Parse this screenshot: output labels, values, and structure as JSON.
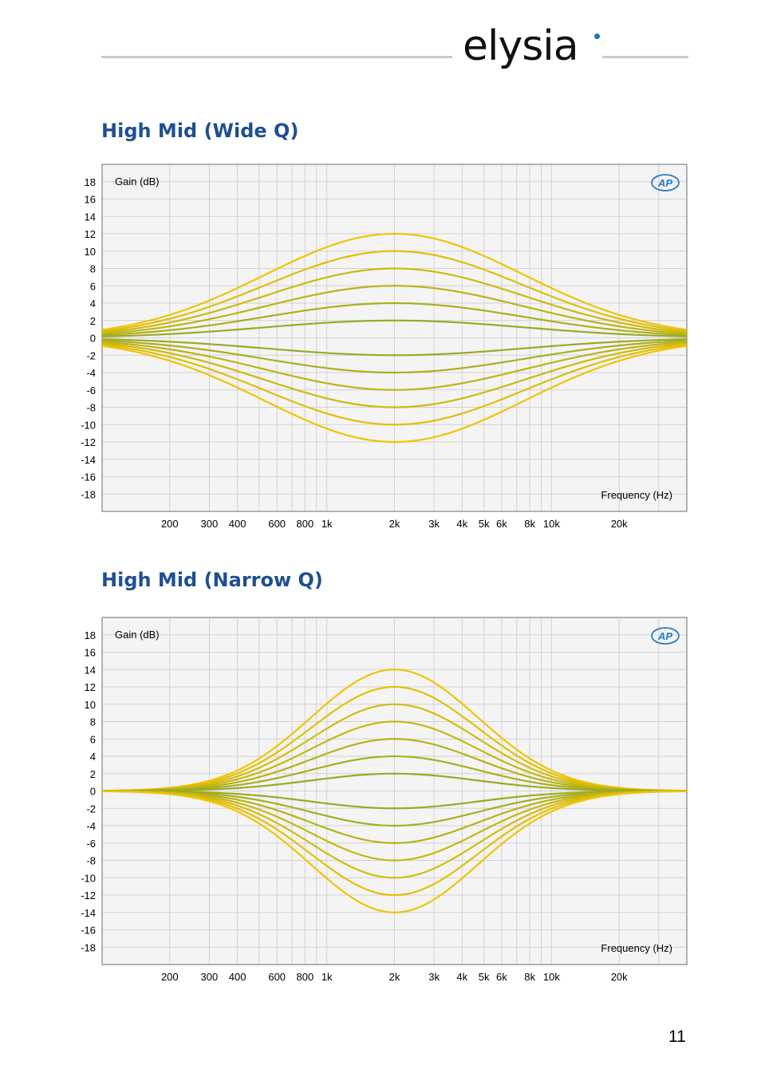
{
  "header": {
    "brand": "elysia"
  },
  "sections": [
    {
      "title": "High Mid (Wide Q)"
    },
    {
      "title": "High Mid (Narrow Q)"
    }
  ],
  "page_number": "11",
  "colors": {
    "title": "#1f4f93",
    "plot_bg": "#f4f4f4",
    "plot_border": "#9a9a9a",
    "grid": "#d2d2d2",
    "curve_outer": "#f2c300",
    "curve_inner": "#9aaa24",
    "ap_logo": "#2a7ac4"
  },
  "chart_data": [
    {
      "type": "line",
      "title": "",
      "ylabel": "Gain (dB)",
      "xlabel": "Frequency (Hz)",
      "x_scale": "log",
      "xlim": [
        100,
        40000
      ],
      "ylim": [
        -20,
        20
      ],
      "yticks": [
        18,
        16,
        14,
        12,
        10,
        8,
        6,
        4,
        2,
        0,
        -2,
        -4,
        -6,
        -8,
        -10,
        -12,
        -14,
        -16,
        -18
      ],
      "ytick_labels": [
        "18",
        "16",
        "14",
        "12",
        "10",
        "8",
        "6",
        "4",
        "2",
        "0",
        "-2",
        "-4",
        "-6",
        "-8",
        "-10",
        "-12",
        "-14",
        "-16",
        "-18"
      ],
      "xticks": [
        200,
        300,
        400,
        600,
        800,
        1000,
        2000,
        3000,
        4000,
        5000,
        6000,
        8000,
        10000,
        20000
      ],
      "xtick_labels": [
        "200",
        "300",
        "400",
        "600",
        "800",
        "1k",
        "2k",
        "3k",
        "4k",
        "5k",
        "6k",
        "8k",
        "10k",
        "20k"
      ],
      "grid": true,
      "legend": "none",
      "logo": "AP",
      "center_frequency": 2000,
      "bandwidth_octaves": 4.5,
      "series_peak_gains": [
        12,
        10,
        8,
        6,
        4,
        2,
        -2,
        -4,
        -6,
        -8,
        -10,
        -12
      ]
    },
    {
      "type": "line",
      "title": "",
      "ylabel": "Gain (dB)",
      "xlabel": "Frequency (Hz)",
      "x_scale": "log",
      "xlim": [
        100,
        40000
      ],
      "ylim": [
        -20,
        20
      ],
      "yticks": [
        18,
        16,
        14,
        12,
        10,
        8,
        6,
        4,
        2,
        0,
        -2,
        -4,
        -6,
        -8,
        -10,
        -12,
        -14,
        -16,
        -18
      ],
      "ytick_labels": [
        "18",
        "16",
        "14",
        "12",
        "10",
        "8",
        "6",
        "4",
        "2",
        "0",
        "-2",
        "-4",
        "-6",
        "-8",
        "-10",
        "-12",
        "-14",
        "-16",
        "-18"
      ],
      "xticks": [
        200,
        300,
        400,
        600,
        800,
        1000,
        2000,
        3000,
        4000,
        5000,
        6000,
        8000,
        10000,
        20000
      ],
      "xtick_labels": [
        "200",
        "300",
        "400",
        "600",
        "800",
        "1k",
        "2k",
        "3k",
        "4k",
        "5k",
        "6k",
        "8k",
        "10k",
        "20k"
      ],
      "grid": true,
      "legend": "none",
      "logo": "AP",
      "center_frequency": 2000,
      "bandwidth_octaves": 2.9,
      "series_peak_gains": [
        14,
        12,
        10,
        8,
        6,
        4,
        2,
        -2,
        -4,
        -6,
        -8,
        -10,
        -12,
        -14
      ]
    }
  ]
}
